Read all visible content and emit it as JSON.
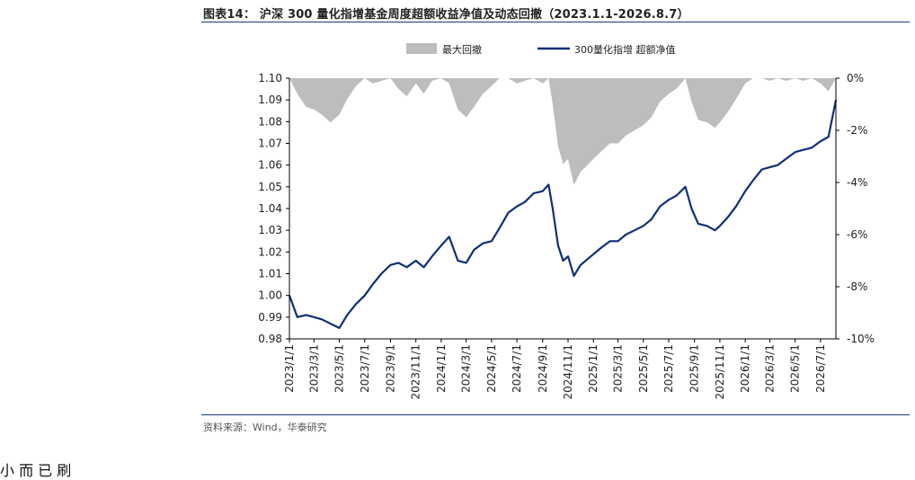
{
  "title": "图表14：  沪深 300 量化指增基金周度超额收益净值及动态回撤（2023.1.1-2026.8.7）",
  "source": "资料来源：Wind，华泰研究",
  "chart_data": {
    "type": "line",
    "legend": [
      {
        "name": "最大回撤",
        "color": "#bdbdbd",
        "kind": "area"
      },
      {
        "name": "300量化指增 超额净值",
        "color": "#0d2f7a",
        "kind": "line"
      }
    ],
    "legend_position": "top",
    "left_axis": {
      "min": 0.98,
      "max": 1.1,
      "ticks": [
        "1.10",
        "1.09",
        "1.08",
        "1.07",
        "1.06",
        "1.05",
        "1.04",
        "1.03",
        "1.02",
        "1.01",
        "1.00",
        "0.99",
        "0.98"
      ]
    },
    "right_axis": {
      "min": -10,
      "max": 0,
      "ticks": [
        "0%",
        "-2%",
        "-4%",
        "-6%",
        "-8%",
        "-10%"
      ]
    },
    "x_ticks": [
      "2023/1/1",
      "2023/3/1",
      "2023/5/1",
      "2023/7/1",
      "2023/9/1",
      "2023/11/1",
      "2024/1/1",
      "2024/3/1",
      "2024/5/1",
      "2024/7/1",
      "2024/9/1",
      "2024/11/1",
      "2025/1/1",
      "2025/3/1",
      "2025/5/1",
      "2025/7/1",
      "2025/9/1",
      "2025/11/1",
      "2026/1/1",
      "2026/3/1",
      "2026/5/1",
      "2026/7/1"
    ],
    "series": [
      {
        "name": "300量化指增 超额净值",
        "axis": "left",
        "points": [
          [
            "2023/1/1",
            1.0
          ],
          [
            "2023/1/20",
            0.99
          ],
          [
            "2023/2/10",
            0.991
          ],
          [
            "2023/3/1",
            0.99
          ],
          [
            "2023/3/20",
            0.989
          ],
          [
            "2023/4/10",
            0.987
          ],
          [
            "2023/5/1",
            0.985
          ],
          [
            "2023/5/20",
            0.991
          ],
          [
            "2023/6/10",
            0.996
          ],
          [
            "2023/7/1",
            1.0
          ],
          [
            "2023/7/20",
            1.005
          ],
          [
            "2023/8/10",
            1.01
          ],
          [
            "2023/9/1",
            1.014
          ],
          [
            "2023/9/20",
            1.015
          ],
          [
            "2023/10/10",
            1.013
          ],
          [
            "2023/11/1",
            1.016
          ],
          [
            "2023/11/20",
            1.013
          ],
          [
            "2023/12/10",
            1.018
          ],
          [
            "2024/1/1",
            1.023
          ],
          [
            "2024/1/20",
            1.027
          ],
          [
            "2024/2/10",
            1.016
          ],
          [
            "2024/3/1",
            1.015
          ],
          [
            "2024/3/20",
            1.021
          ],
          [
            "2024/4/10",
            1.024
          ],
          [
            "2024/5/1",
            1.025
          ],
          [
            "2024/5/20",
            1.031
          ],
          [
            "2024/6/10",
            1.038
          ],
          [
            "2024/7/1",
            1.041
          ],
          [
            "2024/7/20",
            1.043
          ],
          [
            "2024/8/10",
            1.047
          ],
          [
            "2024/9/1",
            1.048
          ],
          [
            "2024/9/15",
            1.051
          ],
          [
            "2024/9/25",
            1.04
          ],
          [
            "2024/10/8",
            1.023
          ],
          [
            "2024/10/20",
            1.016
          ],
          [
            "2024/11/1",
            1.018
          ],
          [
            "2024/11/15",
            1.009
          ],
          [
            "2024/12/1",
            1.014
          ],
          [
            "2025/1/1",
            1.019
          ],
          [
            "2025/1/20",
            1.022
          ],
          [
            "2025/2/10",
            1.025
          ],
          [
            "2025/3/1",
            1.025
          ],
          [
            "2025/3/20",
            1.028
          ],
          [
            "2025/4/10",
            1.03
          ],
          [
            "2025/5/1",
            1.032
          ],
          [
            "2025/5/20",
            1.035
          ],
          [
            "2025/6/10",
            1.041
          ],
          [
            "2025/7/1",
            1.044
          ],
          [
            "2025/7/20",
            1.046
          ],
          [
            "2025/8/10",
            1.05
          ],
          [
            "2025/8/25",
            1.04
          ],
          [
            "2025/9/10",
            1.033
          ],
          [
            "2025/10/1",
            1.032
          ],
          [
            "2025/10/20",
            1.03
          ],
          [
            "2025/11/1",
            1.032
          ],
          [
            "2025/11/20",
            1.036
          ],
          [
            "2025/12/10",
            1.041
          ],
          [
            "2026/1/1",
            1.048
          ],
          [
            "2026/1/20",
            1.053
          ],
          [
            "2026/2/10",
            1.058
          ],
          [
            "2026/3/1",
            1.059
          ],
          [
            "2026/3/20",
            1.06
          ],
          [
            "2026/4/10",
            1.063
          ],
          [
            "2026/5/1",
            1.066
          ],
          [
            "2026/5/20",
            1.067
          ],
          [
            "2026/6/10",
            1.068
          ],
          [
            "2026/7/1",
            1.071
          ],
          [
            "2026/7/20",
            1.073
          ],
          [
            "2026/8/7",
            1.09
          ]
        ]
      },
      {
        "name": "最大回撤",
        "axis": "right",
        "points": [
          [
            "2023/1/1",
            0
          ],
          [
            "2023/1/20",
            -0.6
          ],
          [
            "2023/2/10",
            -1.1
          ],
          [
            "2023/3/1",
            -1.2
          ],
          [
            "2023/3/20",
            -1.4
          ],
          [
            "2023/4/10",
            -1.7
          ],
          [
            "2023/5/1",
            -1.4
          ],
          [
            "2023/5/20",
            -0.8
          ],
          [
            "2023/6/10",
            -0.3
          ],
          [
            "2023/7/1",
            0
          ],
          [
            "2023/7/20",
            -0.2
          ],
          [
            "2023/8/10",
            -0.1
          ],
          [
            "2023/9/1",
            0
          ],
          [
            "2023/9/20",
            -0.4
          ],
          [
            "2023/10/10",
            -0.7
          ],
          [
            "2023/11/1",
            -0.2
          ],
          [
            "2023/11/20",
            -0.6
          ],
          [
            "2023/12/10",
            -0.1
          ],
          [
            "2024/1/1",
            0
          ],
          [
            "2024/1/20",
            -0.2
          ],
          [
            "2024/2/10",
            -1.2
          ],
          [
            "2024/3/1",
            -1.5
          ],
          [
            "2024/3/20",
            -1.1
          ],
          [
            "2024/4/10",
            -0.6
          ],
          [
            "2024/5/1",
            -0.3
          ],
          [
            "2024/5/20",
            0
          ],
          [
            "2024/6/10",
            0
          ],
          [
            "2024/7/1",
            -0.2
          ],
          [
            "2024/7/20",
            -0.1
          ],
          [
            "2024/8/10",
            0
          ],
          [
            "2024/9/1",
            -0.2
          ],
          [
            "2024/9/15",
            0
          ],
          [
            "2024/9/25",
            -1.0
          ],
          [
            "2024/10/8",
            -2.6
          ],
          [
            "2024/10/20",
            -3.3
          ],
          [
            "2024/11/1",
            -3.1
          ],
          [
            "2024/11/15",
            -4.1
          ],
          [
            "2024/12/1",
            -3.6
          ],
          [
            "2025/1/1",
            -3.1
          ],
          [
            "2025/1/20",
            -2.8
          ],
          [
            "2025/2/10",
            -2.5
          ],
          [
            "2025/3/1",
            -2.5
          ],
          [
            "2025/3/20",
            -2.2
          ],
          [
            "2025/4/10",
            -2.0
          ],
          [
            "2025/5/1",
            -1.8
          ],
          [
            "2025/5/20",
            -1.5
          ],
          [
            "2025/6/10",
            -0.9
          ],
          [
            "2025/7/1",
            -0.6
          ],
          [
            "2025/7/20",
            -0.4
          ],
          [
            "2025/8/10",
            0
          ],
          [
            "2025/8/25",
            -0.9
          ],
          [
            "2025/9/10",
            -1.6
          ],
          [
            "2025/10/1",
            -1.7
          ],
          [
            "2025/10/20",
            -1.9
          ],
          [
            "2025/11/1",
            -1.7
          ],
          [
            "2025/11/20",
            -1.3
          ],
          [
            "2025/12/10",
            -0.8
          ],
          [
            "2026/1/1",
            -0.2
          ],
          [
            "2026/1/20",
            0
          ],
          [
            "2026/2/10",
            0
          ],
          [
            "2026/3/1",
            -0.1
          ],
          [
            "2026/3/20",
            0
          ],
          [
            "2026/4/10",
            -0.1
          ],
          [
            "2026/5/1",
            0
          ],
          [
            "2026/5/20",
            -0.1
          ],
          [
            "2026/6/10",
            0
          ],
          [
            "2026/7/1",
            -0.2
          ],
          [
            "2026/7/20",
            -0.5
          ],
          [
            "2026/8/7",
            0
          ]
        ]
      }
    ]
  },
  "next_text": "小  而  已  刷"
}
